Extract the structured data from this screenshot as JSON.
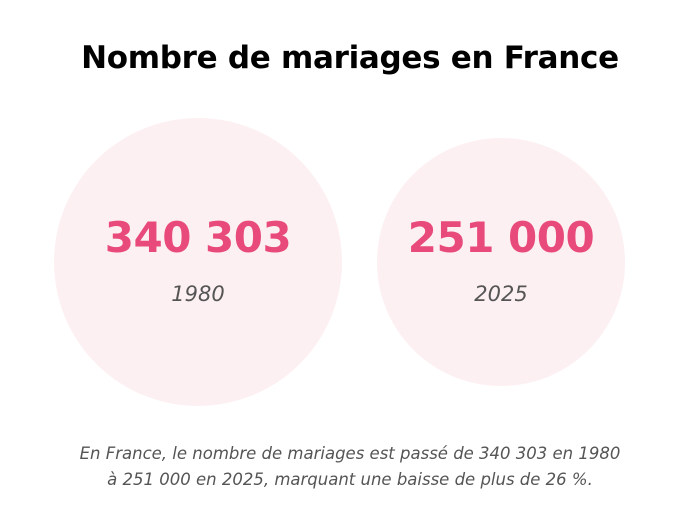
{
  "chart_data": {
    "type": "bubble",
    "title": "Nombre de mariages en France",
    "categories": [
      "1980",
      "2025"
    ],
    "values": [
      340303,
      251000
    ],
    "value_labels": [
      "340 303",
      "251 000"
    ],
    "caption": [
      "En France, le nombre de mariages est passé de 340 303 en 1980",
      "à 251 000 en 2025, marquant une baisse de plus de 26 %."
    ],
    "colors": {
      "value_text": "#e84a7b",
      "bubble_fill": "#fdf0f2",
      "year_text": "#555555",
      "caption_text": "#555555"
    }
  }
}
